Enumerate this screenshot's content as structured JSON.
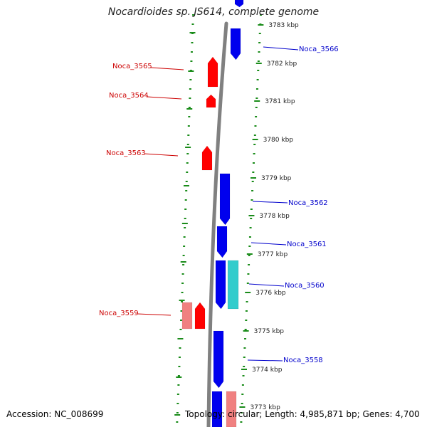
{
  "title": "Nocardioides sp. JS614, complete genome",
  "footer": {
    "accession": "Accession: NC_008699",
    "topology": "Topology: circular; Length: 4,985,871 bp; Genes: 4,700"
  },
  "colors": {
    "backbone": "#808080",
    "tick_green": "#1a8c1a",
    "cds_reverse": "#ff0000",
    "cds_reverse_light": "#f08080",
    "cds_forward": "#0000ee",
    "cds_forward_cyan": "#33cccc",
    "label_reverse": "#cc0000",
    "label_forward": "#0000cc"
  },
  "scale": {
    "unit": "kbp",
    "labels": [
      "3783 kbp",
      "3782 kbp",
      "3781 kbp",
      "3780 kbp",
      "3779 kbp",
      "3778 kbp",
      "3777 kbp",
      "3776 kbp",
      "3775 kbp",
      "3774 kbp",
      "3773 kbp"
    ]
  },
  "genes": [
    {
      "name": "Noca_3566",
      "strand": "forward"
    },
    {
      "name": "Noca_3565",
      "strand": "reverse"
    },
    {
      "name": "Noca_3564",
      "strand": "reverse"
    },
    {
      "name": "Noca_3563",
      "strand": "reverse"
    },
    {
      "name": "Noca_3562",
      "strand": "forward"
    },
    {
      "name": "Noca_3561",
      "strand": "forward"
    },
    {
      "name": "Noca_3560",
      "strand": "forward"
    },
    {
      "name": "Noca_3559",
      "strand": "reverse"
    },
    {
      "name": "Noca_3558",
      "strand": "forward"
    }
  ]
}
